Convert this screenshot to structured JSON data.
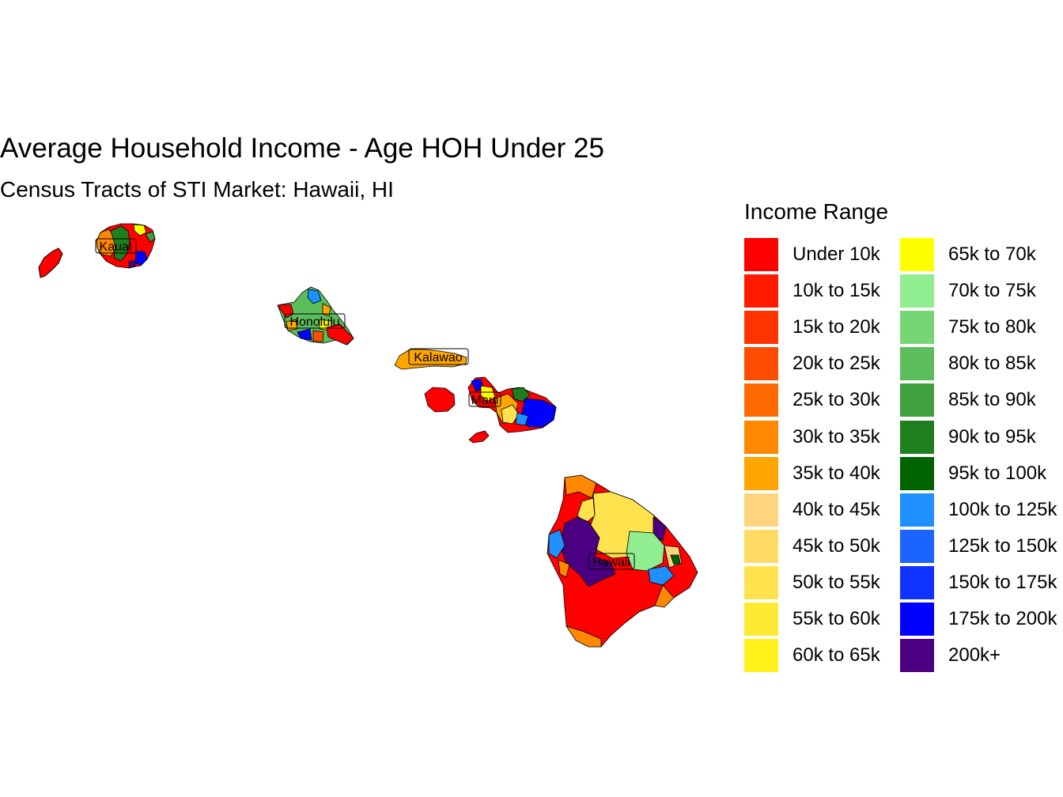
{
  "title": "Average Household Income - Age HOH Under 25",
  "subtitle": "Census Tracts of STI Market: Hawaii, HI",
  "legend": {
    "title": "Income Range",
    "items": [
      {
        "label": "Under 10k",
        "color": "#ff0000"
      },
      {
        "label": "10k to 15k",
        "color": "#ff1a00"
      },
      {
        "label": "15k to 20k",
        "color": "#ff3300"
      },
      {
        "label": "20k to 25k",
        "color": "#ff4d00"
      },
      {
        "label": "25k to 30k",
        "color": "#ff6a00"
      },
      {
        "label": "30k to 35k",
        "color": "#ff8800"
      },
      {
        "label": "35k to 40k",
        "color": "#ffa500"
      },
      {
        "label": "40k to 45k",
        "color": "#ffd47f"
      },
      {
        "label": "45k to 50k",
        "color": "#ffdb66"
      },
      {
        "label": "50k to 55k",
        "color": "#ffe24d"
      },
      {
        "label": "55k to 60k",
        "color": "#ffe933"
      },
      {
        "label": "60k to 65k",
        "color": "#fff21a"
      },
      {
        "label": "65k to 70k",
        "color": "#ffff00"
      },
      {
        "label": "70k to 75k",
        "color": "#90ee90"
      },
      {
        "label": "75k to 80k",
        "color": "#76d676"
      },
      {
        "label": "80k to 85k",
        "color": "#5bbd5b"
      },
      {
        "label": "85k to 90k",
        "color": "#3fa03f"
      },
      {
        "label": "90k to 95k",
        "color": "#1f7f1f"
      },
      {
        "label": "95k to 100k",
        "color": "#006400"
      },
      {
        "label": "100k to 125k",
        "color": "#1e90ff"
      },
      {
        "label": "125k to 150k",
        "color": "#1c64ff"
      },
      {
        "label": "150k to 175k",
        "color": "#0f32ff"
      },
      {
        "label": "175k to 200k",
        "color": "#0000ff"
      },
      {
        "label": "200k+",
        "color": "#4b0082"
      }
    ]
  },
  "places": [
    "Kauai",
    "Honolulu",
    "Kalawao",
    "Maui",
    "Hawaii"
  ]
}
